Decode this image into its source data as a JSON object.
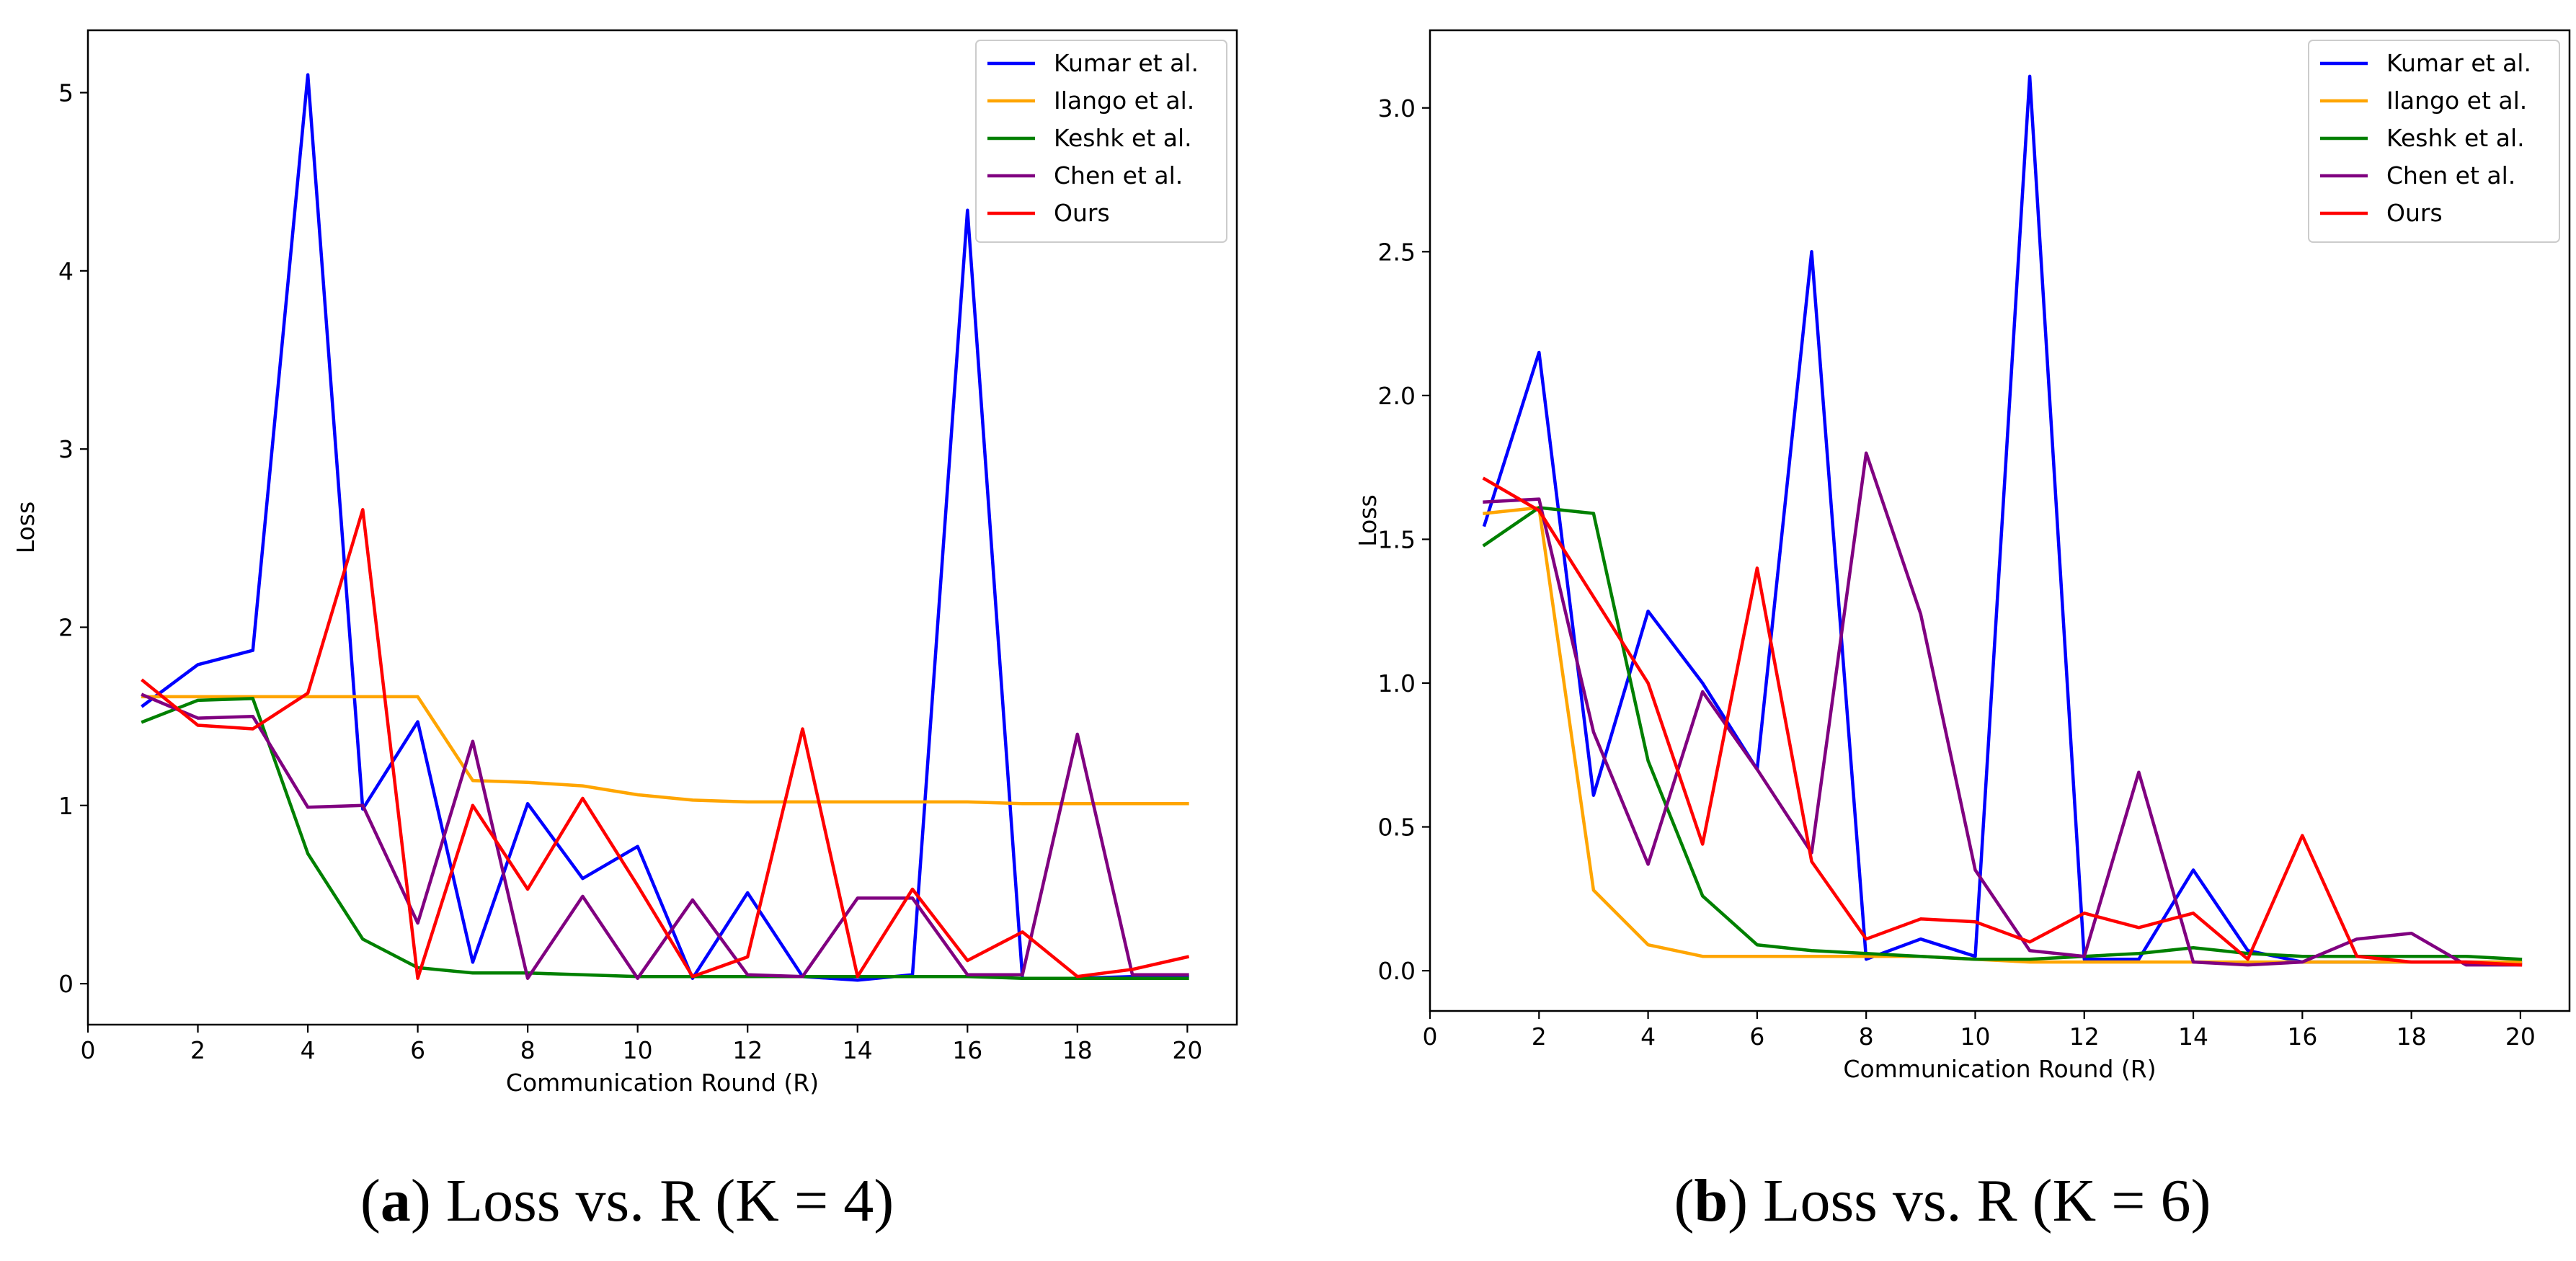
{
  "colors": {
    "Kumar et al.": "#0000ff",
    "Ilango et al.": "#ffa500",
    "Keshk et al.": "#008000",
    "Chen et al.": "#800080",
    "Ours": "#ff0000"
  },
  "captions": [
    {
      "letter": "a",
      "text": ") Loss vs. R (K = 4)"
    },
    {
      "letter": "b",
      "text": ") Loss vs. R (K = 6)"
    }
  ],
  "chart_data": [
    {
      "type": "line",
      "xlabel": "Communication Round (R)",
      "ylabel": "Loss",
      "xlim": [
        0,
        20.9
      ],
      "ylim": [
        -0.23,
        5.35
      ],
      "xticks": [
        0,
        2,
        4,
        6,
        8,
        10,
        12,
        14,
        16,
        18,
        20
      ],
      "yticks": [
        0,
        1,
        2,
        3,
        4,
        5
      ],
      "ytick_labels": [
        "0",
        "1",
        "2",
        "3",
        "4",
        "5"
      ],
      "grid": false,
      "legend": "top-right",
      "x": [
        1,
        2,
        3,
        4,
        5,
        6,
        7,
        8,
        9,
        10,
        11,
        12,
        13,
        14,
        15,
        16,
        17,
        18,
        19,
        20
      ],
      "series": [
        {
          "name": "Kumar et al.",
          "values": [
            1.56,
            1.79,
            1.87,
            5.1,
            0.98,
            1.47,
            0.12,
            1.01,
            0.59,
            0.77,
            0.03,
            0.51,
            0.04,
            0.02,
            0.05,
            4.34,
            0.03,
            0.03,
            0.04,
            0.04
          ]
        },
        {
          "name": "Ilango et al.",
          "values": [
            1.61,
            1.61,
            1.61,
            1.61,
            1.61,
            1.61,
            1.14,
            1.13,
            1.11,
            1.06,
            1.03,
            1.02,
            1.02,
            1.02,
            1.02,
            1.02,
            1.01,
            1.01,
            1.01,
            1.01
          ]
        },
        {
          "name": "Keshk et al.",
          "values": [
            1.47,
            1.59,
            1.6,
            0.73,
            0.25,
            0.09,
            0.06,
            0.06,
            0.05,
            0.04,
            0.04,
            0.04,
            0.04,
            0.04,
            0.04,
            0.04,
            0.03,
            0.03,
            0.03,
            0.03
          ]
        },
        {
          "name": "Chen et al.",
          "values": [
            1.62,
            1.49,
            1.5,
            0.99,
            1.0,
            0.34,
            1.36,
            0.03,
            0.49,
            0.03,
            0.47,
            0.05,
            0.04,
            0.48,
            0.48,
            0.05,
            0.05,
            1.4,
            0.05,
            0.05
          ]
        },
        {
          "name": "Ours",
          "values": [
            1.7,
            1.45,
            1.43,
            1.63,
            2.66,
            0.03,
            1.0,
            0.53,
            1.04,
            0.55,
            0.04,
            0.15,
            1.43,
            0.04,
            0.53,
            0.13,
            0.29,
            0.04,
            0.08,
            0.15
          ]
        }
      ]
    },
    {
      "type": "line",
      "xlabel": "Communication Round (R)",
      "ylabel": "Loss",
      "xlim": [
        0,
        20.9
      ],
      "ylim": [
        -0.14,
        3.27
      ],
      "xticks": [
        0,
        2,
        4,
        6,
        8,
        10,
        12,
        14,
        16,
        18,
        20
      ],
      "yticks": [
        0,
        0.5,
        1,
        1.5,
        2,
        2.5,
        3
      ],
      "ytick_labels": [
        "0.0",
        "0.5",
        "1.0",
        "1.5",
        "2.0",
        "2.5",
        "3.0"
      ],
      "grid": false,
      "legend": "top-right",
      "x": [
        1,
        2,
        3,
        4,
        5,
        6,
        7,
        8,
        9,
        10,
        11,
        12,
        13,
        14,
        15,
        16,
        17,
        18,
        19,
        20
      ],
      "series": [
        {
          "name": "Kumar et al.",
          "values": [
            1.55,
            2.15,
            0.61,
            1.25,
            1.0,
            0.7,
            2.5,
            0.04,
            0.11,
            0.05,
            3.11,
            0.04,
            0.04,
            0.35,
            0.07,
            0.03,
            0.03,
            0.03,
            0.03,
            0.03
          ]
        },
        {
          "name": "Ilango et al.",
          "values": [
            1.59,
            1.61,
            0.28,
            0.09,
            0.05,
            0.05,
            0.05,
            0.05,
            0.05,
            0.04,
            0.03,
            0.03,
            0.03,
            0.03,
            0.03,
            0.03,
            0.03,
            0.03,
            0.03,
            0.03
          ]
        },
        {
          "name": "Keshk et al.",
          "values": [
            1.48,
            1.61,
            1.59,
            0.73,
            0.26,
            0.09,
            0.07,
            0.06,
            0.05,
            0.04,
            0.04,
            0.05,
            0.06,
            0.08,
            0.06,
            0.05,
            0.05,
            0.05,
            0.05,
            0.04
          ]
        },
        {
          "name": "Chen et al.",
          "values": [
            1.63,
            1.64,
            0.83,
            0.37,
            0.97,
            0.7,
            0.41,
            1.8,
            1.24,
            0.35,
            0.07,
            0.05,
            0.69,
            0.03,
            0.02,
            0.03,
            0.11,
            0.13,
            0.02,
            0.02
          ]
        },
        {
          "name": "Ours",
          "values": [
            1.71,
            1.6,
            1.3,
            1.0,
            0.44,
            1.4,
            0.38,
            0.11,
            0.18,
            0.17,
            0.1,
            0.2,
            0.15,
            0.2,
            0.04,
            0.47,
            0.05,
            0.03,
            0.03,
            0.02
          ]
        }
      ]
    }
  ]
}
